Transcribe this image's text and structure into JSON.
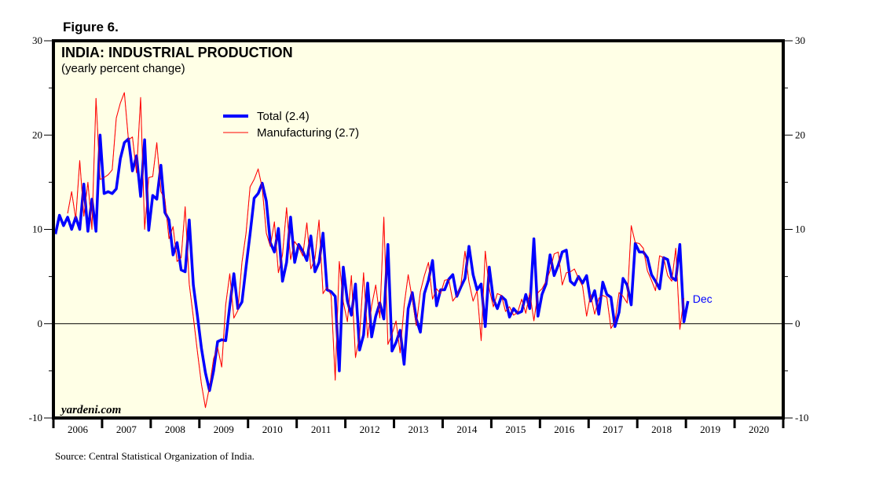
{
  "figure_label": "Figure 6.",
  "source": "Source: Central Statistical Organization of India.",
  "watermark": "yardeni.com",
  "colors": {
    "background": "#ffffe6",
    "total": "#0000ff",
    "manufacturing": "#ff0000",
    "axis": "#000000"
  },
  "chart_data": {
    "type": "line",
    "title": "INDIA: INDUSTRIAL PRODUCTION",
    "subtitle": "(yearly percent change)",
    "xlabel": "",
    "ylabel": "",
    "frequency": "monthly",
    "x_start": "2006-01",
    "xlim": [
      "2006-01",
      "2020-12"
    ],
    "ylim": [
      -10,
      30
    ],
    "y_ticks_major": [
      -10,
      0,
      10,
      20,
      30
    ],
    "y_ticks_minor": [
      -5,
      5,
      15,
      25
    ],
    "y_axes": "both",
    "x_tick_labels": [
      "2006",
      "2007",
      "2008",
      "2009",
      "2010",
      "2011",
      "2012",
      "2013",
      "2014",
      "2015",
      "2016",
      "2017",
      "2018",
      "2019",
      "2020"
    ],
    "zero_line": true,
    "grid": false,
    "legend": {
      "placement": "top-center"
    },
    "annotation": {
      "text": "Dec",
      "series": "Total"
    },
    "series": [
      {
        "name": "Total",
        "legend_label": "Total (2.4)",
        "latest": 2.4,
        "start": "2006-01",
        "values": [
          9.5,
          11.5,
          10.4,
          11.3,
          10.0,
          11.3,
          10.0,
          14.8,
          9.8,
          13.2,
          9.8,
          20.0,
          13.8,
          14.0,
          13.8,
          14.3,
          17.5,
          19.2,
          19.6,
          16.2,
          17.8,
          13.5,
          19.5,
          9.9,
          13.6,
          13.2,
          16.8,
          11.8,
          11.0,
          7.3,
          8.6,
          5.7,
          5.5,
          11.0,
          4.1,
          0.9,
          -2.6,
          -5.2,
          -7.1,
          -5.0,
          -1.9,
          -1.7,
          -1.8,
          1.9,
          5.3,
          1.6,
          2.3,
          6.0,
          9.5,
          13.3,
          13.8,
          14.9,
          13.0,
          8.6,
          7.6,
          10.1,
          4.5,
          6.5,
          11.3,
          6.5,
          8.4,
          7.7,
          6.7,
          9.3,
          5.5,
          6.5,
          9.6,
          3.6,
          3.4,
          2.9,
          -5.0,
          6.0,
          2.4,
          0.9,
          4.2,
          -2.8,
          -1.2,
          4.3,
          -1.4,
          0.8,
          2.2,
          0.5,
          8.4,
          -2.9,
          -2.0,
          -0.7,
          -4.3,
          1.6,
          3.3,
          0.5,
          -0.9,
          3.2,
          4.6,
          6.7,
          1.9,
          3.6,
          3.6,
          4.7,
          5.2,
          2.9,
          3.9,
          4.8,
          8.2,
          5.2,
          3.6,
          4.2,
          -0.3,
          6.0,
          2.6,
          1.6,
          2.9,
          2.5,
          0.7,
          1.6,
          1.1,
          1.3,
          3.1,
          1.6,
          9.0,
          0.8,
          3.1,
          4.2,
          7.3,
          5.1,
          6.2,
          7.6,
          7.8,
          4.5,
          4.1,
          5.0,
          4.3,
          5.1,
          2.4,
          3.5,
          1.0,
          4.4,
          3.1,
          2.8,
          -0.3,
          1.2,
          4.8,
          4.1,
          2.0,
          8.5,
          7.6,
          7.6,
          7.0,
          5.2,
          4.5,
          3.7,
          7.0,
          6.8,
          4.9,
          4.6,
          8.4,
          0.2,
          2.4
        ]
      },
      {
        "name": "Manufacturing",
        "legend_label": "Manufacturing (2.7)",
        "latest": 2.7,
        "start": "2006-04",
        "values": [
          11.7,
          14.0,
          11.1,
          17.3,
          11.4,
          15.0,
          10.0,
          23.9,
          15.3,
          15.5,
          15.8,
          16.3,
          21.8,
          23.4,
          24.5,
          19.5,
          19.8,
          16.0,
          24.0,
          10.0,
          15.5,
          15.6,
          19.2,
          14.0,
          13.2,
          9.0,
          10.3,
          6.6,
          7.0,
          12.4,
          4.2,
          0.7,
          -2.9,
          -6.4,
          -8.9,
          -6.7,
          -3.7,
          -2.5,
          -4.6,
          2.0,
          5.3,
          0.6,
          1.4,
          6.5,
          9.6,
          14.5,
          15.3,
          16.4,
          14.4,
          9.6,
          8.2,
          10.8,
          5.4,
          7.3,
          12.3,
          6.8,
          8.7,
          8.1,
          7.2,
          10.7,
          5.8,
          6.9,
          11.0,
          3.2,
          3.9,
          3.0,
          -6.0,
          6.6,
          2.3,
          0.2,
          5.1,
          -3.6,
          -1.3,
          5.4,
          -1.5,
          1.9,
          4.1,
          0.6,
          11.3,
          -2.2,
          -1.1,
          0.3,
          -3.1,
          1.9,
          5.2,
          2.6,
          -0.2,
          3.4,
          5.1,
          6.5,
          2.6,
          3.7,
          3.2,
          4.6,
          4.7,
          2.4,
          3.0,
          4.1,
          7.7,
          4.4,
          2.4,
          3.5,
          -1.8,
          7.7,
          3.7,
          1.8,
          3.2,
          3.0,
          1.3,
          1.8,
          0.9,
          1.2,
          2.6,
          1.1,
          3.3,
          0.3,
          3.3,
          3.7,
          4.5,
          5.6,
          7.4,
          7.6,
          4.1,
          5.4,
          5.5,
          5.8,
          4.8,
          4.0,
          0.8,
          3.1,
          1.0,
          2.7,
          3.0,
          2.8,
          -0.5,
          0.2,
          3.3,
          2.9,
          2.2,
          10.4,
          8.6,
          8.5,
          8.0,
          5.6,
          4.6,
          3.5,
          7.2,
          7.0,
          5.1,
          4.5,
          8.0,
          -0.6,
          2.7
        ]
      }
    ]
  }
}
